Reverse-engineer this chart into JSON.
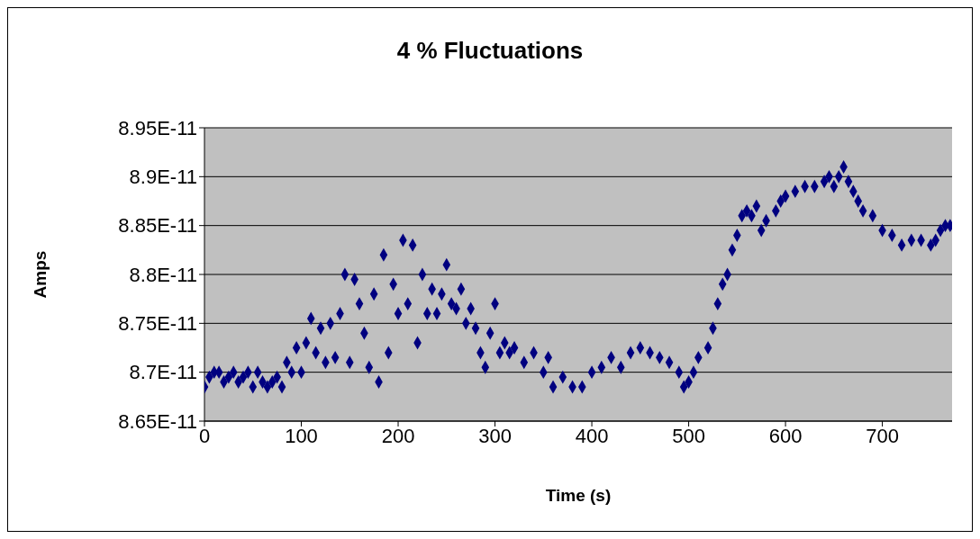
{
  "chart_data": {
    "type": "scatter",
    "title": "4 % Fluctuations",
    "xlabel": "Time (s)",
    "ylabel": "Amps",
    "x": [
      0,
      5,
      10,
      15,
      20,
      25,
      30,
      35,
      40,
      45,
      50,
      55,
      60,
      65,
      70,
      75,
      80,
      85,
      90,
      95,
      100,
      105,
      110,
      115,
      120,
      125,
      130,
      135,
      140,
      145,
      150,
      155,
      160,
      165,
      170,
      175,
      180,
      185,
      190,
      195,
      200,
      205,
      210,
      215,
      220,
      225,
      230,
      235,
      240,
      245,
      250,
      255,
      260,
      265,
      270,
      275,
      280,
      285,
      290,
      295,
      300,
      305,
      310,
      315,
      320,
      330,
      340,
      350,
      355,
      360,
      370,
      380,
      390,
      400,
      410,
      420,
      430,
      440,
      450,
      460,
      470,
      480,
      490,
      495,
      500,
      505,
      510,
      520,
      525,
      530,
      535,
      540,
      545,
      550,
      555,
      560,
      565,
      570,
      575,
      580,
      590,
      595,
      600,
      610,
      620,
      630,
      640,
      645,
      650,
      655,
      660,
      665,
      670,
      675,
      680,
      690,
      700,
      710,
      720,
      730,
      740,
      750,
      755,
      760,
      765,
      770
    ],
    "series": [
      {
        "color": "#000080",
        "values": [
          8.685e-11,
          8.695e-11,
          8.7e-11,
          8.7e-11,
          8.69e-11,
          8.695e-11,
          8.7e-11,
          8.69e-11,
          8.695e-11,
          8.7e-11,
          8.685e-11,
          8.7e-11,
          8.69e-11,
          8.685e-11,
          8.69e-11,
          8.695e-11,
          8.685e-11,
          8.71e-11,
          8.7e-11,
          8.725e-11,
          8.7e-11,
          8.73e-11,
          8.755e-11,
          8.72e-11,
          8.745e-11,
          8.71e-11,
          8.75e-11,
          8.715e-11,
          8.76e-11,
          8.8e-11,
          8.71e-11,
          8.795e-11,
          8.77e-11,
          8.74e-11,
          8.705e-11,
          8.78e-11,
          8.69e-11,
          8.82e-11,
          8.72e-11,
          8.79e-11,
          8.76e-11,
          8.835e-11,
          8.77e-11,
          8.83e-11,
          8.73e-11,
          8.8e-11,
          8.76e-11,
          8.785e-11,
          8.76e-11,
          8.78e-11,
          8.81e-11,
          8.77e-11,
          8.765e-11,
          8.785e-11,
          8.75e-11,
          8.765e-11,
          8.745e-11,
          8.72e-11,
          8.705e-11,
          8.74e-11,
          8.77e-11,
          8.72e-11,
          8.73e-11,
          8.72e-11,
          8.725e-11,
          8.71e-11,
          8.72e-11,
          8.7e-11,
          8.715e-11,
          8.685e-11,
          8.695e-11,
          8.685e-11,
          8.685e-11,
          8.7e-11,
          8.705e-11,
          8.715e-11,
          8.705e-11,
          8.72e-11,
          8.725e-11,
          8.72e-11,
          8.715e-11,
          8.71e-11,
          8.7e-11,
          8.685e-11,
          8.69e-11,
          8.7e-11,
          8.715e-11,
          8.725e-11,
          8.745e-11,
          8.77e-11,
          8.79e-11,
          8.8e-11,
          8.825e-11,
          8.84e-11,
          8.86e-11,
          8.865e-11,
          8.86e-11,
          8.87e-11,
          8.845e-11,
          8.855e-11,
          8.865e-11,
          8.875e-11,
          8.88e-11,
          8.885e-11,
          8.89e-11,
          8.89e-11,
          8.895e-11,
          8.9e-11,
          8.89e-11,
          8.9e-11,
          8.91e-11,
          8.895e-11,
          8.885e-11,
          8.875e-11,
          8.865e-11,
          8.86e-11,
          8.845e-11,
          8.84e-11,
          8.83e-11,
          8.835e-11,
          8.835e-11,
          8.83e-11,
          8.835e-11,
          8.845e-11,
          8.85e-11,
          8.85e-11
        ]
      }
    ],
    "xlim": [
      0,
      772
    ],
    "xticks": [
      0,
      100,
      200,
      300,
      400,
      500,
      600,
      700
    ],
    "ylim": [
      8.65e-11,
      8.95e-11
    ],
    "yticks": [
      {
        "value": 8.65e-11,
        "label": "8.65E-11"
      },
      {
        "value": 8.7e-11,
        "label": "8.7E-11"
      },
      {
        "value": 8.75e-11,
        "label": "8.75E-11"
      },
      {
        "value": 8.8e-11,
        "label": "8.8E-11"
      },
      {
        "value": 8.85e-11,
        "label": "8.85E-11"
      },
      {
        "value": 8.9e-11,
        "label": "8.9E-11"
      },
      {
        "value": 8.95e-11,
        "label": "8.95E-11"
      }
    ],
    "grid": "y",
    "marker": "diamond"
  }
}
